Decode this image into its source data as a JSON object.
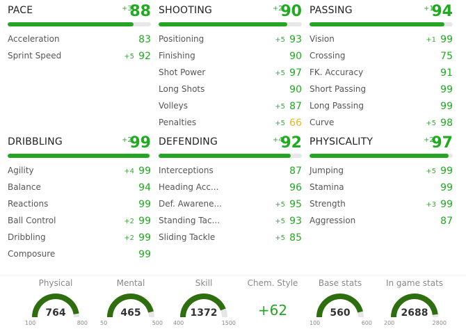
{
  "categories": [
    {
      "id": "pace",
      "name": "PACE",
      "bonus": "+3",
      "value": "88",
      "fill": 0.88,
      "stats": [
        {
          "label": "Acceleration",
          "bonus": "",
          "value": "83",
          "color": "green"
        },
        {
          "label": "Sprint Speed",
          "bonus": "+5",
          "value": "92",
          "color": "green"
        }
      ]
    },
    {
      "id": "shooting",
      "name": "SHOOTING",
      "bonus": "+2",
      "value": "90",
      "fill": 0.9,
      "stats": [
        {
          "label": "Positioning",
          "bonus": "+5",
          "value": "93",
          "color": "green"
        },
        {
          "label": "Finishing",
          "bonus": "",
          "value": "90",
          "color": "green"
        },
        {
          "label": "Shot Power",
          "bonus": "+5",
          "value": "97",
          "color": "green"
        },
        {
          "label": "Long Shots",
          "bonus": "",
          "value": "90",
          "color": "green"
        },
        {
          "label": "Volleys",
          "bonus": "+5",
          "value": "87",
          "color": "green"
        },
        {
          "label": "Penalties",
          "bonus": "+5",
          "value": "66",
          "color": "yellow"
        }
      ]
    },
    {
      "id": "passing",
      "name": "PASSING",
      "bonus": "+1",
      "value": "94",
      "fill": 0.94,
      "stats": [
        {
          "label": "Vision",
          "bonus": "+1",
          "value": "99",
          "color": "green"
        },
        {
          "label": "Crossing",
          "bonus": "",
          "value": "75",
          "color": "green"
        },
        {
          "label": "FK. Accuracy",
          "bonus": "",
          "value": "91",
          "color": "green"
        },
        {
          "label": "Short Passing",
          "bonus": "",
          "value": "99",
          "color": "green"
        },
        {
          "label": "Long Passing",
          "bonus": "",
          "value": "99",
          "color": "green"
        },
        {
          "label": "Curve",
          "bonus": "+5",
          "value": "98",
          "color": "green"
        }
      ]
    },
    {
      "id": "dribbling",
      "name": "DRIBBLING",
      "bonus": "+2",
      "value": "99",
      "fill": 0.99,
      "stats": [
        {
          "label": "Agility",
          "bonus": "+4",
          "value": "99",
          "color": "green"
        },
        {
          "label": "Balance",
          "bonus": "",
          "value": "94",
          "color": "green"
        },
        {
          "label": "Reactions",
          "bonus": "",
          "value": "99",
          "color": "green"
        },
        {
          "label": "Ball Control",
          "bonus": "+2",
          "value": "99",
          "color": "green"
        },
        {
          "label": "Dribbling",
          "bonus": "+2",
          "value": "99",
          "color": "green"
        },
        {
          "label": "Composure",
          "bonus": "",
          "value": "99",
          "color": "green"
        }
      ]
    },
    {
      "id": "defending",
      "name": "DEFENDING",
      "bonus": "+4",
      "value": "92",
      "fill": 0.92,
      "stats": [
        {
          "label": "Interceptions",
          "bonus": "",
          "value": "87",
          "color": "green"
        },
        {
          "label": "Heading Acc...",
          "bonus": "",
          "value": "96",
          "color": "green"
        },
        {
          "label": "Def. Awarene...",
          "bonus": "+5",
          "value": "95",
          "color": "green"
        },
        {
          "label": "Standing Tac...",
          "bonus": "+5",
          "value": "93",
          "color": "green"
        },
        {
          "label": "Sliding Tackle",
          "bonus": "+5",
          "value": "85",
          "color": "green"
        }
      ]
    },
    {
      "id": "physicality",
      "name": "PHYSICALITY",
      "bonus": "+2",
      "value": "97",
      "fill": 0.97,
      "stats": [
        {
          "label": "Jumping",
          "bonus": "+5",
          "value": "99",
          "color": "green"
        },
        {
          "label": "Stamina",
          "bonus": "",
          "value": "99",
          "color": "green"
        },
        {
          "label": "Strength",
          "bonus": "+3",
          "value": "99",
          "color": "green"
        },
        {
          "label": "Aggression",
          "bonus": "",
          "value": "87",
          "color": "green"
        }
      ]
    }
  ],
  "footer": [
    {
      "id": "physical",
      "label": "Physical",
      "type": "gauge",
      "value": "764",
      "min": "100",
      "max": "800",
      "fraction": 0.95
    },
    {
      "id": "mental",
      "label": "Mental",
      "type": "gauge",
      "value": "465",
      "min": "50",
      "max": "500",
      "fraction": 0.92
    },
    {
      "id": "skill",
      "label": "Skill",
      "type": "gauge",
      "value": "1372",
      "min": "400",
      "max": "1500",
      "fraction": 0.88
    },
    {
      "id": "chem-style",
      "label": "Chem. Style",
      "type": "text",
      "value": "+62"
    },
    {
      "id": "base-stats",
      "label": "Base stats",
      "type": "gauge",
      "value": "560",
      "min": "100",
      "max": "600",
      "fraction": 0.92
    },
    {
      "id": "in-game-stats",
      "label": "In game stats",
      "type": "gauge",
      "value": "2688",
      "min": "200",
      "max": "2800",
      "fraction": 0.96
    }
  ],
  "colors": {
    "green": "#1faa1f",
    "bar": "#24a524",
    "yellow": "#e6b820",
    "track": "#e6e6e6",
    "gauge": "#2f6e0f"
  }
}
